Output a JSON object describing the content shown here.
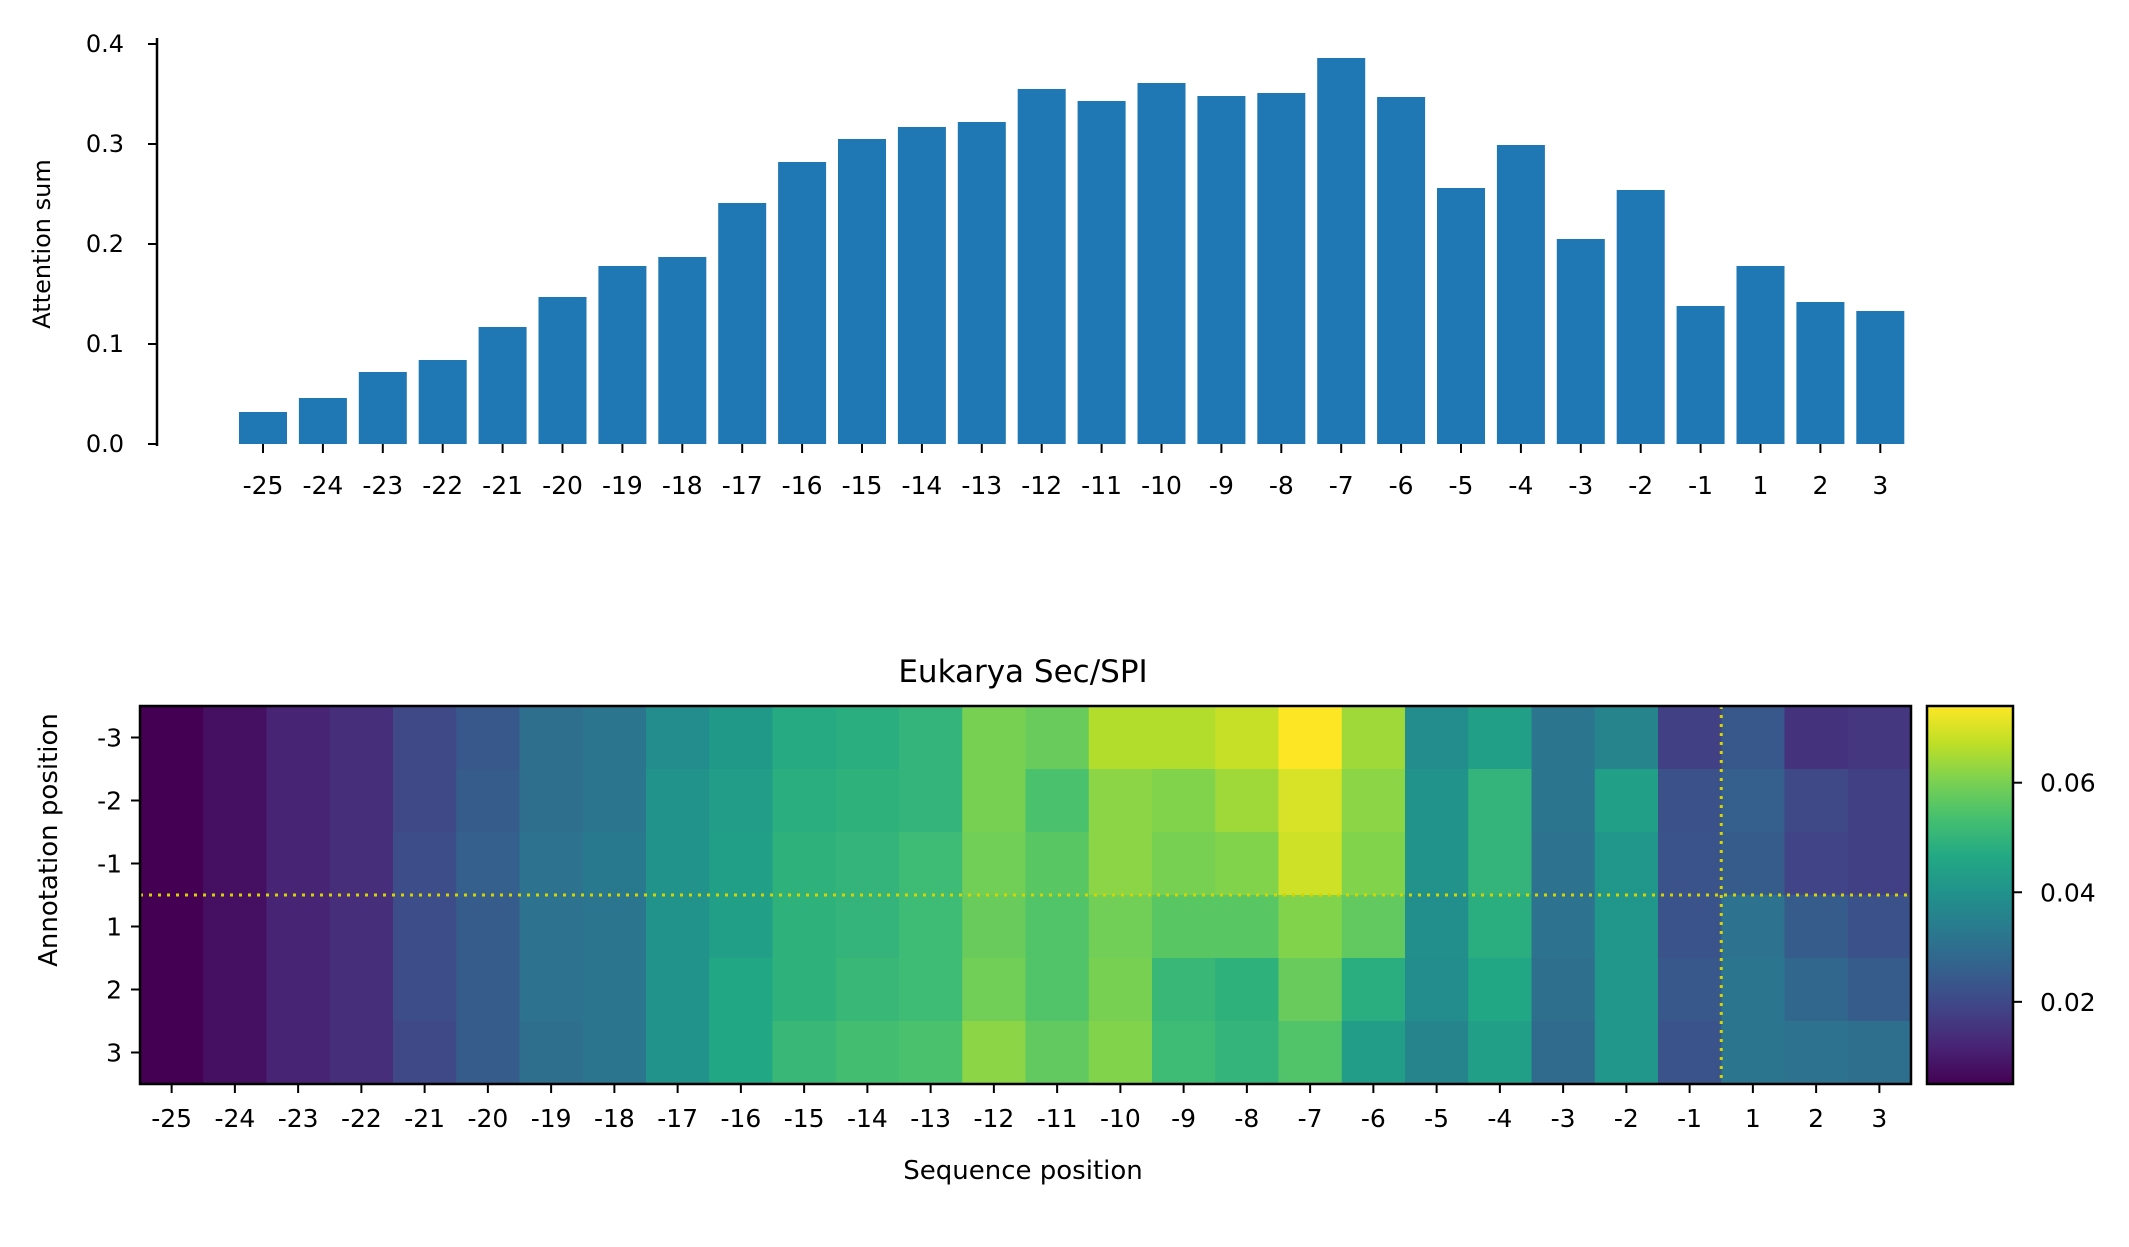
{
  "chart_data": [
    {
      "type": "bar",
      "ylabel": "Attention sum",
      "ylim": [
        0,
        0.4
      ],
      "yticks": [
        "0.0",
        "0.1",
        "0.2",
        "0.3",
        "0.4"
      ],
      "color": "#1f77b4",
      "categories": [
        "-25",
        "-24",
        "-23",
        "-22",
        "-21",
        "-20",
        "-19",
        "-18",
        "-17",
        "-16",
        "-15",
        "-14",
        "-13",
        "-12",
        "-11",
        "-10",
        "-9",
        "-8",
        "-7",
        "-6",
        "-5",
        "-4",
        "-3",
        "-2",
        "-1",
        "1",
        "2",
        "3"
      ],
      "values": [
        0.032,
        0.046,
        0.072,
        0.084,
        0.117,
        0.147,
        0.178,
        0.187,
        0.241,
        0.282,
        0.305,
        0.317,
        0.322,
        0.355,
        0.343,
        0.361,
        0.348,
        0.351,
        0.386,
        0.347,
        0.256,
        0.299,
        0.205,
        0.254,
        0.138,
        0.178,
        0.142,
        0.133
      ]
    },
    {
      "type": "heatmap",
      "title": "Eukarya Sec/SPI",
      "xlabel": "Sequence position",
      "ylabel": "Annotation position",
      "colormap": "viridis",
      "vmin": 0.005,
      "vmax": 0.074,
      "colorbar_ticks": [
        "0.02",
        "0.04",
        "0.06"
      ],
      "x_categories": [
        "-25",
        "-24",
        "-23",
        "-22",
        "-21",
        "-20",
        "-19",
        "-18",
        "-17",
        "-16",
        "-15",
        "-14",
        "-13",
        "-12",
        "-11",
        "-10",
        "-9",
        "-8",
        "-7",
        "-6",
        "-5",
        "-4",
        "-3",
        "-2",
        "-1",
        "1",
        "2",
        "3"
      ],
      "y_categories": [
        "-3",
        "-2",
        "-1",
        "1",
        "2",
        "3"
      ],
      "reference_lines": {
        "color": "#d4d400",
        "style": "dotted",
        "between_x": [
          "-1",
          "1"
        ],
        "between_y": [
          "-1",
          "1"
        ]
      },
      "values": [
        [
          0.005,
          0.008,
          0.012,
          0.014,
          0.02,
          0.024,
          0.03,
          0.032,
          0.038,
          0.042,
          0.047,
          0.048,
          0.05,
          0.06,
          0.058,
          0.066,
          0.066,
          0.068,
          0.074,
          0.064,
          0.038,
          0.044,
          0.032,
          0.036,
          0.018,
          0.024,
          0.015,
          0.016
        ],
        [
          0.005,
          0.008,
          0.012,
          0.014,
          0.02,
          0.025,
          0.03,
          0.032,
          0.04,
          0.043,
          0.048,
          0.049,
          0.05,
          0.06,
          0.054,
          0.062,
          0.061,
          0.064,
          0.07,
          0.062,
          0.04,
          0.05,
          0.032,
          0.044,
          0.022,
          0.026,
          0.02,
          0.018
        ],
        [
          0.005,
          0.008,
          0.012,
          0.014,
          0.021,
          0.026,
          0.031,
          0.033,
          0.04,
          0.044,
          0.049,
          0.05,
          0.052,
          0.059,
          0.056,
          0.062,
          0.06,
          0.061,
          0.069,
          0.061,
          0.04,
          0.05,
          0.031,
          0.041,
          0.023,
          0.025,
          0.019,
          0.018
        ],
        [
          0.005,
          0.008,
          0.012,
          0.014,
          0.021,
          0.025,
          0.031,
          0.032,
          0.04,
          0.044,
          0.049,
          0.05,
          0.052,
          0.058,
          0.055,
          0.059,
          0.056,
          0.056,
          0.061,
          0.057,
          0.039,
          0.048,
          0.031,
          0.041,
          0.023,
          0.031,
          0.025,
          0.022
        ],
        [
          0.005,
          0.008,
          0.012,
          0.014,
          0.021,
          0.025,
          0.031,
          0.032,
          0.04,
          0.046,
          0.049,
          0.051,
          0.052,
          0.059,
          0.055,
          0.06,
          0.051,
          0.049,
          0.058,
          0.048,
          0.038,
          0.046,
          0.03,
          0.041,
          0.024,
          0.032,
          0.028,
          0.025
        ],
        [
          0.005,
          0.008,
          0.012,
          0.014,
          0.02,
          0.025,
          0.03,
          0.032,
          0.04,
          0.046,
          0.051,
          0.053,
          0.054,
          0.062,
          0.057,
          0.061,
          0.052,
          0.05,
          0.055,
          0.043,
          0.036,
          0.044,
          0.029,
          0.041,
          0.023,
          0.032,
          0.031,
          0.03
        ]
      ]
    }
  ]
}
